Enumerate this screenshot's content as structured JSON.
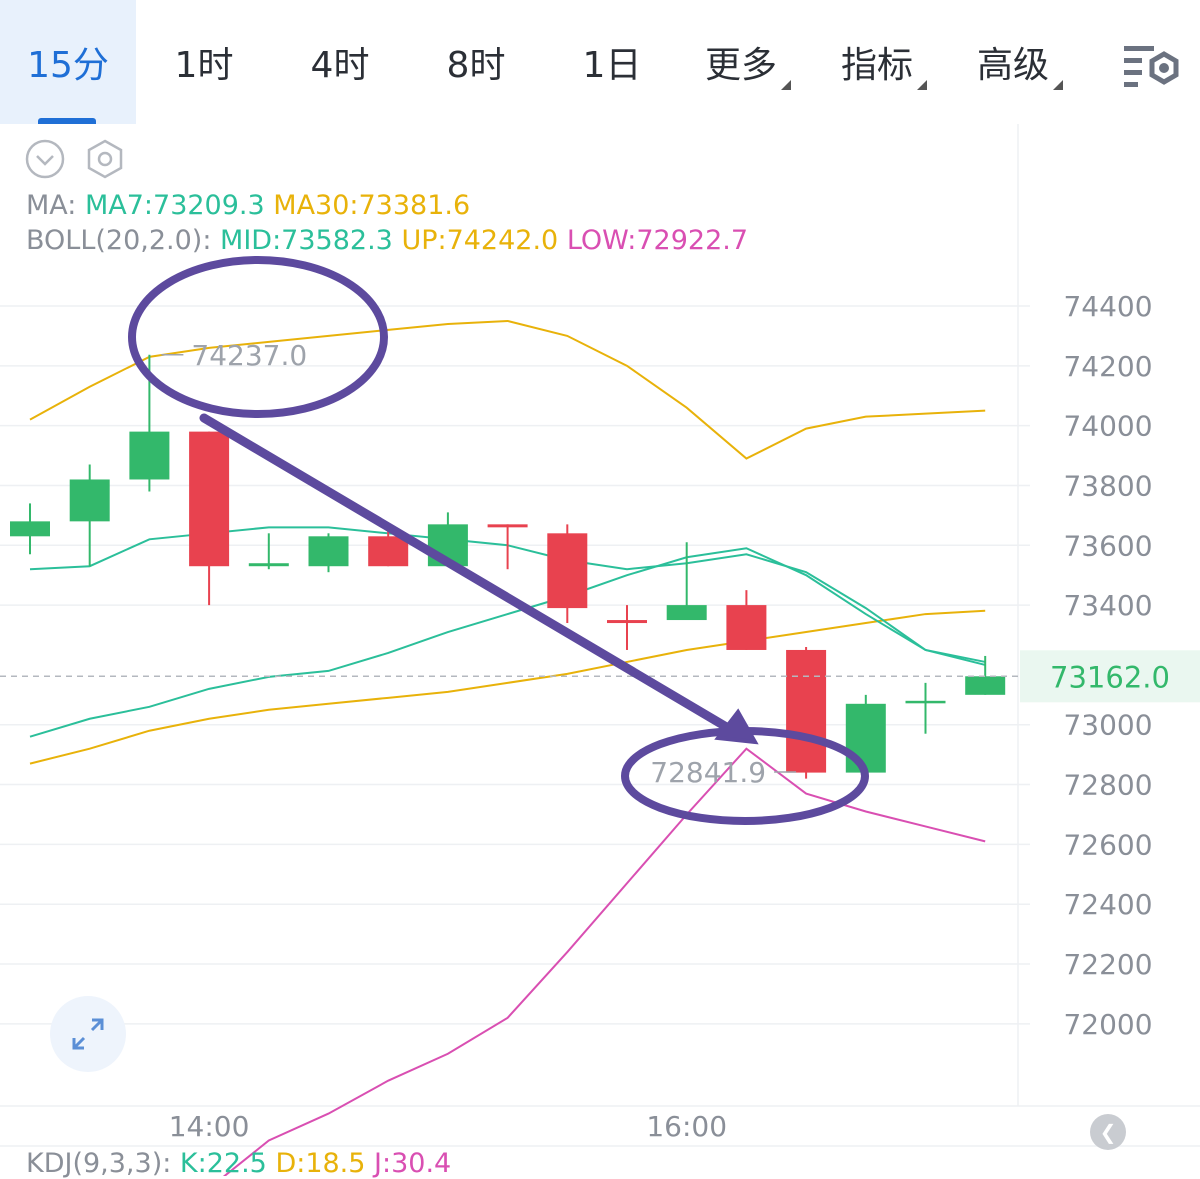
{
  "tabs": [
    {
      "label": "15分",
      "active": true
    },
    {
      "label": "1时"
    },
    {
      "label": "4时"
    },
    {
      "label": "8时"
    },
    {
      "label": "1日"
    },
    {
      "label": "更多",
      "dropdown": true
    },
    {
      "label": "指标",
      "dropdown": true
    },
    {
      "label": "高级",
      "dropdown": true
    }
  ],
  "legend": {
    "ma_prefix": "MA:",
    "ma7": "MA7:73209.3",
    "ma30": "MA30:73381.6",
    "boll_prefix": "BOLL(20,2.0):",
    "mid": "MID:73582.3",
    "up": "UP:74242.0",
    "low": "LOW:72922.7"
  },
  "kdj": {
    "prefix": "KDJ(9,3,3):",
    "k": "K:22.5",
    "d": "D:18.5",
    "j": "J:30.4"
  },
  "colors": {
    "up_candle": "#33b86b",
    "down_candle": "#e8424f",
    "ma7": "#2bbf9a",
    "ma30": "#e8b20a",
    "boll_low": "#d94fb2",
    "annotation": "#5d4a9e",
    "accent": "#1f6fd6"
  },
  "chart_data": {
    "type": "candlestick",
    "y_ticks": [
      74400,
      74200,
      74000,
      73800,
      73600,
      73400,
      73000,
      72800,
      72600,
      72400,
      72200,
      72000
    ],
    "x_ticks": [
      {
        "label": "14:00",
        "index": 3
      },
      {
        "label": "16:00",
        "index": 11
      }
    ],
    "current_price": 73162.0,
    "high_marker": {
      "label": "74237.0",
      "value": 74237.0,
      "index": 2
    },
    "low_marker": {
      "label": "72841.9",
      "value": 72841.9,
      "index": 13
    },
    "candles": [
      {
        "open": 73630,
        "close": 73680,
        "high": 73740,
        "low": 73570
      },
      {
        "open": 73680,
        "close": 73820,
        "high": 73870,
        "low": 73530
      },
      {
        "open": 73820,
        "close": 73980,
        "high": 74237,
        "low": 73780
      },
      {
        "open": 73980,
        "close": 73530,
        "high": 73980,
        "low": 73400
      },
      {
        "open": 73530,
        "close": 73540,
        "high": 73640,
        "low": 73520
      },
      {
        "open": 73530,
        "close": 73630,
        "high": 73640,
        "low": 73510
      },
      {
        "open": 73630,
        "close": 73530,
        "high": 73650,
        "low": 73530
      },
      {
        "open": 73530,
        "close": 73670,
        "high": 73710,
        "low": 73530
      },
      {
        "open": 73670,
        "close": 73660,
        "high": 73670,
        "low": 73520
      },
      {
        "open": 73640,
        "close": 73390,
        "high": 73670,
        "low": 73340
      },
      {
        "open": 73350,
        "close": 73340,
        "high": 73400,
        "low": 73250
      },
      {
        "open": 73350,
        "close": 73400,
        "high": 73610,
        "low": 73350
      },
      {
        "open": 73400,
        "close": 73250,
        "high": 73450,
        "low": 73250
      },
      {
        "open": 73250,
        "close": 72840,
        "high": 73260,
        "low": 72820
      },
      {
        "open": 72840,
        "close": 73070,
        "high": 73100,
        "low": 72840
      },
      {
        "open": 73080,
        "close": 73080,
        "high": 73140,
        "low": 72970
      },
      {
        "open": 73100,
        "close": 73162,
        "high": 73230,
        "low": 73100
      }
    ],
    "boll_up": [
      74020,
      74130,
      74230,
      74260,
      74280,
      74300,
      74320,
      74340,
      74350,
      74300,
      74200,
      74060,
      73890,
      73990,
      74030,
      74040,
      74050
    ],
    "boll_mid": [
      73520,
      73530,
      73620,
      73640,
      73660,
      73660,
      73640,
      73620,
      73600,
      73550,
      73520,
      73540,
      73570,
      73510,
      73390,
      73250,
      73210
    ],
    "boll_low": [
      71390,
      71410,
      71430,
      71450,
      71610,
      71700,
      71810,
      71900,
      72020,
      72240,
      72470,
      72700,
      72920,
      72770,
      72710,
      72660,
      72610
    ],
    "ma7": [
      72960,
      73020,
      73060,
      73120,
      73160,
      73180,
      73240,
      73310,
      73370,
      73430,
      73500,
      73560,
      73590,
      73500,
      73370,
      73250,
      73200
    ],
    "ma30": [
      72870,
      72920,
      72980,
      73020,
      73050,
      73070,
      73090,
      73110,
      73140,
      73170,
      73210,
      73250,
      73280,
      73310,
      73340,
      73370,
      73381
    ]
  }
}
